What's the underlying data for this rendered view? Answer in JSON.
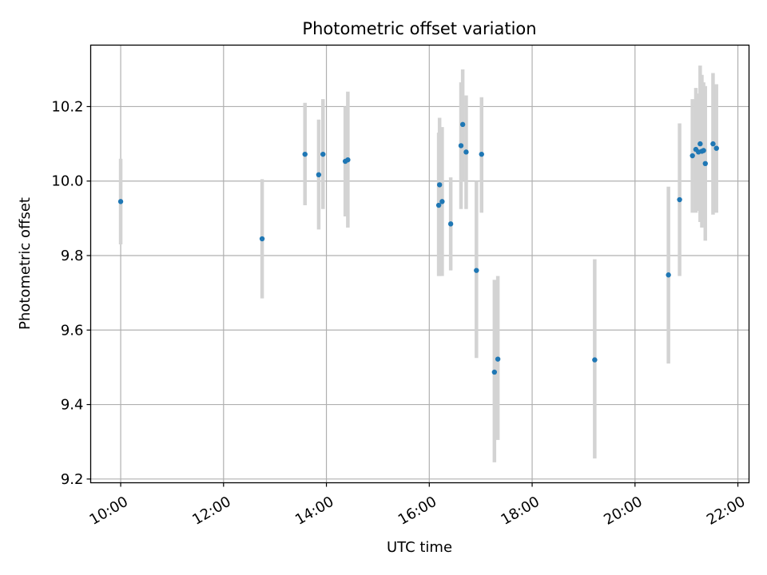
{
  "chart_data": {
    "type": "scatter",
    "title": "Photometric offset variation",
    "xlabel": "UTC time",
    "ylabel": "Photometric offset",
    "x_ticks": [
      "10:00",
      "12:00",
      "14:00",
      "16:00",
      "18:00",
      "20:00",
      "22:00"
    ],
    "y_ticks": [
      "9.2",
      "9.4",
      "9.6",
      "9.8",
      "10.0",
      "10.2"
    ],
    "xlim": [
      "09:25",
      "22:13"
    ],
    "ylim": [
      9.19,
      10.365
    ],
    "grid": true,
    "colors": {
      "point": "#1f77b4",
      "errorbar": "#d3d3d3",
      "grid": "#b0b0b0"
    },
    "series": [
      {
        "points": [
          {
            "x": "10:00",
            "y": 9.945,
            "ylow": 9.83,
            "yhigh": 10.06
          },
          {
            "x": "12:45",
            "y": 9.845,
            "ylow": 9.685,
            "yhigh": 10.005
          },
          {
            "x": "13:35",
            "y": 10.072,
            "ylow": 9.935,
            "yhigh": 10.21
          },
          {
            "x": "13:51",
            "y": 10.017,
            "ylow": 9.87,
            "yhigh": 10.165
          },
          {
            "x": "13:56",
            "y": 10.072,
            "ylow": 9.925,
            "yhigh": 10.22
          },
          {
            "x": "14:22",
            "y": 10.053,
            "ylow": 9.905,
            "yhigh": 10.2
          },
          {
            "x": "14:25",
            "y": 10.057,
            "ylow": 9.875,
            "yhigh": 10.24
          },
          {
            "x": "16:11",
            "y": 9.935,
            "ylow": 9.745,
            "yhigh": 10.13
          },
          {
            "x": "16:12",
            "y": 9.99,
            "ylow": 9.745,
            "yhigh": 10.17
          },
          {
            "x": "16:15",
            "y": 9.945,
            "ylow": 9.745,
            "yhigh": 10.145
          },
          {
            "x": "16:25",
            "y": 9.885,
            "ylow": 9.76,
            "yhigh": 10.01
          },
          {
            "x": "16:37",
            "y": 10.095,
            "ylow": 9.925,
            "yhigh": 10.265
          },
          {
            "x": "16:39",
            "y": 10.152,
            "ylow": 10.0,
            "yhigh": 10.3
          },
          {
            "x": "16:43",
            "y": 10.078,
            "ylow": 9.925,
            "yhigh": 10.23
          },
          {
            "x": "16:55",
            "y": 9.76,
            "ylow": 9.525,
            "yhigh": 10.0
          },
          {
            "x": "17:01",
            "y": 10.072,
            "ylow": 9.915,
            "yhigh": 10.225
          },
          {
            "x": "17:16",
            "y": 9.487,
            "ylow": 9.245,
            "yhigh": 9.735
          },
          {
            "x": "17:20",
            "y": 9.522,
            "ylow": 9.305,
            "yhigh": 9.745
          },
          {
            "x": "19:13",
            "y": 9.52,
            "ylow": 9.255,
            "yhigh": 9.79
          },
          {
            "x": "20:39",
            "y": 9.748,
            "ylow": 9.51,
            "yhigh": 9.985
          },
          {
            "x": "20:52",
            "y": 9.95,
            "ylow": 9.745,
            "yhigh": 10.155
          },
          {
            "x": "21:07",
            "y": 10.068,
            "ylow": 9.915,
            "yhigh": 10.22
          },
          {
            "x": "21:11",
            "y": 10.085,
            "ylow": 9.915,
            "yhigh": 10.25
          },
          {
            "x": "21:14",
            "y": 10.078,
            "ylow": 9.92,
            "yhigh": 10.235
          },
          {
            "x": "21:16",
            "y": 10.1,
            "ylow": 9.89,
            "yhigh": 10.31
          },
          {
            "x": "21:18",
            "y": 10.08,
            "ylow": 9.875,
            "yhigh": 10.285
          },
          {
            "x": "21:20",
            "y": 10.082,
            "ylow": 9.9,
            "yhigh": 10.265
          },
          {
            "x": "21:22",
            "y": 10.047,
            "ylow": 9.84,
            "yhigh": 10.255
          },
          {
            "x": "21:31",
            "y": 10.1,
            "ylow": 9.91,
            "yhigh": 10.29
          },
          {
            "x": "21:35",
            "y": 10.088,
            "ylow": 9.915,
            "yhigh": 10.26
          }
        ]
      }
    ]
  }
}
